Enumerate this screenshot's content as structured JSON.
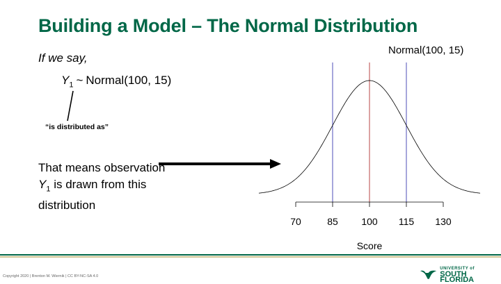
{
  "slide": {
    "title": "Building a Model – The Normal Distribution",
    "intro": "If we say,",
    "formula": {
      "var": "Y",
      "subscript": "1",
      "tilde": "~",
      "dist": "Normal(100, 15)"
    },
    "annotation": "“is distributed as”",
    "body": {
      "line1": "That means observation",
      "var": "Y",
      "subscript": "1",
      "line2_rest": " is drawn from this",
      "line3": "distribution"
    }
  },
  "chart_data": {
    "type": "line",
    "title": "Normal(100, 15)",
    "xlabel": "Score",
    "ylabel": "",
    "distribution": {
      "mean": 100,
      "sd": 15
    },
    "xlim": [
      55,
      145
    ],
    "ticks": [
      70,
      85,
      100,
      115,
      130
    ],
    "tick_labels": [
      "70",
      "85",
      "100",
      "115",
      "130"
    ],
    "vertical_lines": [
      {
        "x": 85,
        "color": "#3b3bb0"
      },
      {
        "x": 100,
        "color": "#b03030"
      },
      {
        "x": 115,
        "color": "#3b3bb0"
      }
    ],
    "curve_color": "#000000"
  },
  "footer": {
    "copyright": "Copyright 2020 | Brenton M. Wiernik | CC BY-NC-SA 4.0",
    "logo_small": "UNIVERSITY of",
    "logo_big": "SOUTH FLORIDA",
    "colors": {
      "green": "#006747",
      "gold": "#cfc493"
    }
  }
}
